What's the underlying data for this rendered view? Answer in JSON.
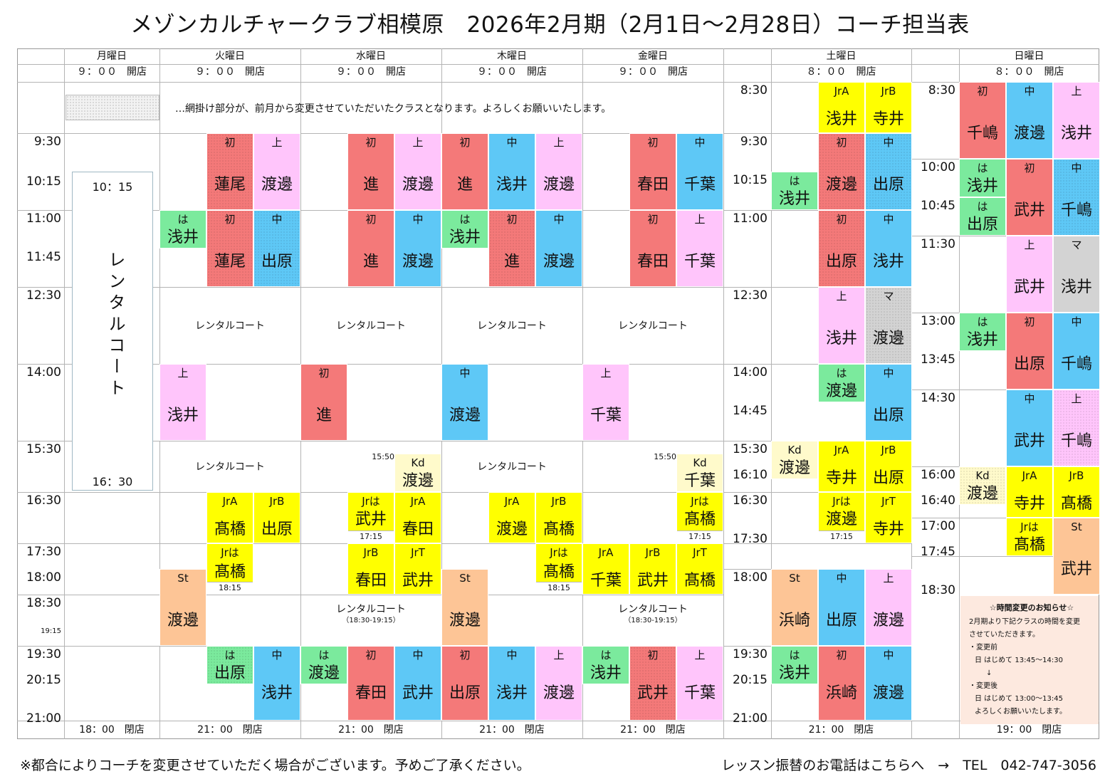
{
  "title": "メゾンカルチャークラブ相模原　2026年2月期（2月1日～2月28日）コーチ担当表",
  "days": {
    "mon": {
      "name": "月曜日",
      "open": "９：００　開店",
      "close": "18：00　閉店"
    },
    "tue": {
      "name": "火曜日",
      "open": "９：００　開店",
      "close": "21：00　閉店"
    },
    "wed": {
      "name": "水曜日",
      "open": "９：００　開店",
      "close": "21：00　閉店"
    },
    "thu": {
      "name": "木曜日",
      "open": "９：００　開店",
      "close": "21：00　閉店"
    },
    "fri": {
      "name": "金曜日",
      "open": "９：００　開店",
      "close": "21：00　閉店"
    },
    "sat": {
      "name": "土曜日",
      "open": "８：００　開店",
      "close": "21：00　閉店"
    },
    "sun": {
      "name": "日曜日",
      "open": "８：００　開店",
      "close": "19：00　閉店"
    }
  },
  "legend_note": "…網掛け部分が、前月から変更させていただいたクラスとなります。よろしくお願いいたします。",
  "weekday_times": [
    "9:30",
    "10:15",
    "11:00",
    "11:45",
    "12:30",
    "14:00",
    "15:30",
    "16:30",
    "17:30",
    "18:00",
    "18:30",
    "19:15",
    "19:30",
    "20:15",
    "21:00"
  ],
  "sat_times": [
    "8:30",
    "9:30",
    "10:15",
    "11:00",
    "12:30",
    "14:00",
    "14:45",
    "15:30",
    "16:10",
    "16:30",
    "17:30",
    "18:00",
    "19:30",
    "20:15",
    "21:00"
  ],
  "sun_times": [
    "8:30",
    "10:00",
    "10:45",
    "11:30",
    "13:00",
    "13:45",
    "14:30",
    "16:00",
    "16:40",
    "17:00",
    "17:45",
    "18:30"
  ],
  "monday_rental": {
    "start": "10：15",
    "label": "レンタルコート",
    "end": "16：30"
  },
  "rental_label": "レンタルコート",
  "rental_sub": "（18:30-19:15）",
  "kd_time": "15:50",
  "levels": {
    "shokyu": "初",
    "chukyu": "中",
    "jokyu": "上",
    "hajimete": "は",
    "master": "マ",
    "jra": "JrA",
    "jrb": "JrB",
    "jrt": "JrT",
    "jrha": "Jrは",
    "kd": "Kd",
    "st": "St"
  },
  "colors": {
    "shokyu": "#f47979",
    "chukyu": "#5ec8f6",
    "jokyu": "#ffc5fb",
    "hajimete": "#7bea9d",
    "junior": "#ffff00",
    "kd": "#fffacb",
    "st": "#fdc596",
    "master": "#d3d3d3"
  },
  "coaches": {
    "asai": "浅井",
    "watanabe": "渡邊",
    "hasuo": "蓮尾",
    "susumu": "進",
    "haruta": "春田",
    "chiba": "千葉",
    "dehara": "出原",
    "takahashi": "髙橋",
    "takei": "武井",
    "terai": "寺井",
    "chishima": "千嶋",
    "hamasaki": "浜崎"
  },
  "end_times": {
    "t1715": "17:15",
    "t1815": "18:15"
  },
  "notice": {
    "title": "☆時間変更のお知らせ☆",
    "line1": "2月期より下記クラスの時間を変更",
    "line2": "させていただきます。",
    "before_label": "・変更前",
    "before": "日 はじめて 13:45～14:30",
    "arrow": "↓",
    "after_label": "・変更後",
    "after": "日 はじめて 13:00～13:45",
    "closing": "よろしくお願いいたします。"
  },
  "footer": {
    "left": "※都合によりコーチを変更させていただく場合がございます。予めご了承ください。",
    "right": "レッスン振替のお電話はこちらへ　→　TEL　042-747-3056"
  }
}
